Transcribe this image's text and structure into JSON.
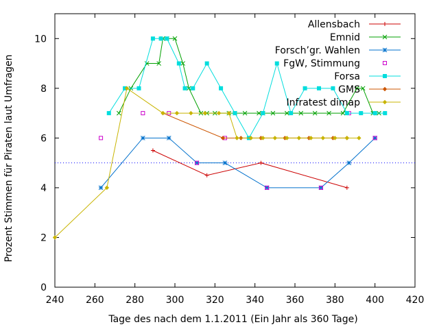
{
  "chart_data": {
    "type": "line",
    "title": "",
    "xlabel": "Tage des nach dem 1.1.2011 (Ein Jahr als 360 Tage)",
    "ylabel": "Prozent Stimmen für Piraten laut Umfragen",
    "xlim": [
      240,
      420
    ],
    "ylim": [
      0,
      11
    ],
    "xticks": [
      240,
      260,
      280,
      300,
      320,
      340,
      360,
      380,
      400,
      420
    ],
    "yticks": [
      0,
      2,
      4,
      6,
      8,
      10
    ],
    "grid": false,
    "legend": "top-right",
    "reference_line": {
      "y": 5,
      "style": "dotted",
      "color": "#0000ff"
    },
    "series": [
      {
        "name": "Allensbach",
        "color": "#cc0000",
        "marker": "plus",
        "line": true,
        "points": [
          [
            289,
            5.5
          ],
          [
            316,
            4.5
          ],
          [
            343,
            5
          ],
          [
            386,
            4
          ]
        ]
      },
      {
        "name": "Emnid",
        "color": "#00a000",
        "marker": "cross",
        "line": true,
        "points": [
          [
            272,
            7
          ],
          [
            278,
            8
          ],
          [
            286,
            9
          ],
          [
            292,
            9
          ],
          [
            294,
            10
          ],
          [
            296,
            10
          ],
          [
            300,
            10
          ],
          [
            304,
            9
          ],
          [
            307,
            8
          ],
          [
            313,
            7
          ],
          [
            316,
            7
          ],
          [
            320,
            7
          ],
          [
            327,
            7
          ],
          [
            330,
            7
          ],
          [
            335,
            7
          ],
          [
            342,
            7
          ],
          [
            344,
            7
          ],
          [
            349,
            7
          ],
          [
            356,
            7
          ],
          [
            363,
            7
          ],
          [
            370,
            7
          ],
          [
            377,
            7
          ],
          [
            384,
            7
          ],
          [
            391,
            8
          ],
          [
            394,
            8
          ],
          [
            399,
            7
          ],
          [
            402,
            7
          ]
        ]
      },
      {
        "name": "Forsch’gr. Wahlen",
        "color": "#0070cc",
        "marker": "star",
        "line": true,
        "points": [
          [
            263,
            4
          ],
          [
            284,
            6
          ],
          [
            297,
            6
          ],
          [
            311,
            5
          ],
          [
            325,
            5
          ],
          [
            346,
            4
          ],
          [
            373,
            4
          ],
          [
            387,
            5
          ],
          [
            400,
            6
          ]
        ]
      },
      {
        "name": "FgW, Stimmung",
        "color": "#cc00cc",
        "marker": "open-square",
        "line": false,
        "points": [
          [
            263,
            6
          ],
          [
            284,
            7
          ],
          [
            297,
            7
          ],
          [
            311,
            5
          ],
          [
            325,
            6
          ],
          [
            346,
            4
          ],
          [
            373,
            4
          ],
          [
            387,
            7
          ],
          [
            400,
            6
          ]
        ]
      },
      {
        "name": "Forsa",
        "color": "#00dddd",
        "marker": "filled-square",
        "line": true,
        "points": [
          [
            267,
            7
          ],
          [
            275,
            8
          ],
          [
            282,
            8
          ],
          [
            289,
            10
          ],
          [
            293,
            10
          ],
          [
            296,
            10
          ],
          [
            302,
            9
          ],
          [
            305,
            8
          ],
          [
            309,
            8
          ],
          [
            316,
            9
          ],
          [
            323,
            8
          ],
          [
            330,
            7
          ],
          [
            337,
            6
          ],
          [
            344,
            7
          ],
          [
            351,
            9
          ],
          [
            358,
            7
          ],
          [
            365,
            8
          ],
          [
            372,
            8
          ],
          [
            379,
            8
          ],
          [
            386,
            7
          ],
          [
            393,
            7
          ],
          [
            400,
            7
          ],
          [
            405,
            7
          ]
        ]
      },
      {
        "name": "GMS",
        "color": "#cc5500",
        "marker": "diamond",
        "line": true,
        "points": [
          [
            294,
            7
          ],
          [
            324,
            6
          ],
          [
            333,
            6
          ],
          [
            343,
            6
          ],
          [
            355,
            6
          ],
          [
            367,
            6
          ],
          [
            379,
            6
          ],
          [
            386,
            6
          ]
        ]
      },
      {
        "name": "Infratest dimap",
        "color": "#c8b400",
        "marker": "diamond",
        "line": true,
        "points": [
          [
            240,
            2
          ],
          [
            266,
            4
          ],
          [
            276,
            8
          ],
          [
            294,
            7
          ],
          [
            301,
            7
          ],
          [
            308,
            7
          ],
          [
            315,
            7
          ],
          [
            322,
            7
          ],
          [
            327,
            7
          ],
          [
            331,
            6
          ],
          [
            338,
            6
          ],
          [
            344,
            6
          ],
          [
            350,
            6
          ],
          [
            356,
            6
          ],
          [
            362,
            6
          ],
          [
            368,
            6
          ],
          [
            374,
            6
          ],
          [
            380,
            6
          ],
          [
            386,
            6
          ],
          [
            392,
            6
          ]
        ]
      }
    ]
  }
}
